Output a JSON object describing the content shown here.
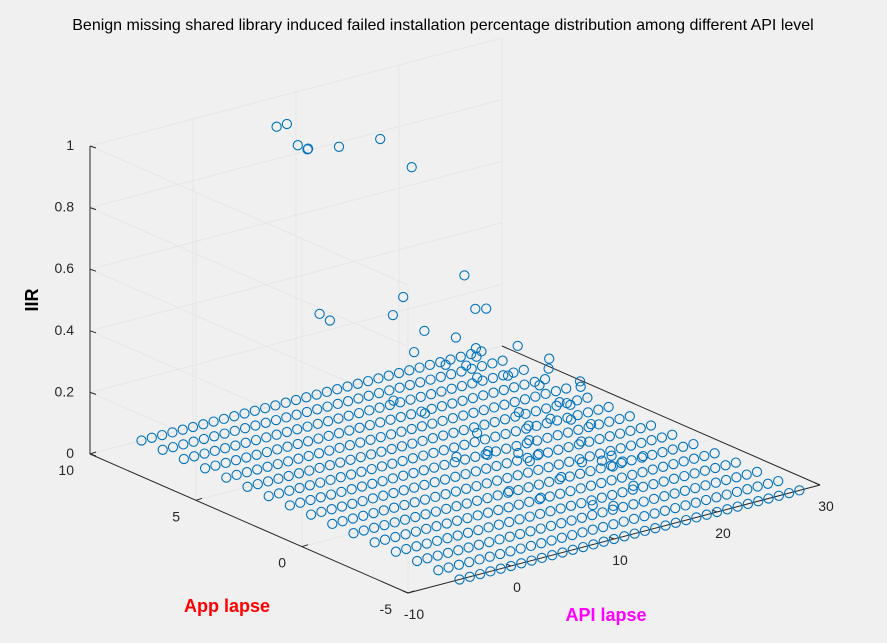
{
  "chart_data": {
    "type": "scatter",
    "title": "Benign missing shared library induced failed installation percentage distribution among different API level",
    "xlabel": "API lapse",
    "ylabel": "App lapse",
    "zlabel": "IIR",
    "xlabel_color": "#ff00ff",
    "ylabel_color": "#ff0000",
    "marker_color": "#0072bd",
    "marker": "open-circle",
    "grid": true,
    "view": "3d",
    "xlim": [
      -10,
      30
    ],
    "ylim": [
      -5,
      10
    ],
    "zlim": [
      0,
      1
    ],
    "xticks": [
      "-10",
      "0",
      "10",
      "20",
      "30"
    ],
    "yticks": [
      "-5",
      "0",
      "5",
      "10"
    ],
    "zticks": [
      "0",
      "0.2",
      "0.4",
      "0.6",
      "0.8",
      "1"
    ],
    "base_grid": {
      "x_min": -5,
      "x_max": 28,
      "x_step": 1,
      "y_min": -5,
      "y_max": 10,
      "y_step": 1,
      "z": 0
    },
    "elevated_points": [
      [
        4,
        8,
        1.0
      ],
      [
        5,
        8,
        1.0
      ],
      [
        4,
        7,
        0.97
      ],
      [
        5,
        7,
        0.95
      ],
      [
        7,
        8,
        0.9
      ],
      [
        8,
        7,
        0.93
      ],
      [
        12,
        7,
        0.92
      ],
      [
        13,
        6,
        0.85
      ],
      [
        6,
        3,
        0.58
      ],
      [
        2,
        5,
        0.5
      ],
      [
        3,
        5,
        0.47
      ],
      [
        5,
        3,
        0.53
      ],
      [
        6,
        2,
        0.5
      ],
      [
        7,
        1,
        0.5
      ],
      [
        12,
        2,
        0.52
      ],
      [
        14,
        4,
        0.55
      ],
      [
        13,
        3,
        0.48
      ],
      [
        5,
        2,
        0.44
      ],
      [
        6,
        1,
        0.42
      ],
      [
        7,
        0,
        0.4
      ],
      [
        9,
        1,
        0.42
      ],
      [
        10,
        0,
        0.38
      ],
      [
        11,
        -1,
        0.37
      ],
      [
        8,
        1,
        0.4
      ],
      [
        11,
        2,
        0.4
      ],
      [
        13,
        1,
        0.42
      ],
      [
        14,
        0,
        0.4
      ],
      [
        15,
        -1,
        0.33
      ],
      [
        17,
        0,
        0.3
      ],
      [
        16,
        1,
        0.32
      ],
      [
        3,
        2,
        0.3
      ],
      [
        4,
        1,
        0.28
      ],
      [
        9,
        -1,
        0.3
      ],
      [
        12,
        -2,
        0.28
      ],
      [
        10,
        -2,
        0.3
      ],
      [
        14,
        -1,
        0.28
      ],
      [
        15,
        0,
        0.25
      ],
      [
        6,
        -1,
        0.2
      ],
      [
        8,
        -2,
        0.18
      ],
      [
        11,
        -3,
        0.18
      ],
      [
        13,
        -2,
        0.2
      ],
      [
        7,
        0,
        0.22
      ],
      [
        10,
        -1,
        0.2
      ],
      [
        12,
        0,
        0.2
      ],
      [
        16,
        -1,
        0.2
      ],
      [
        5,
        0,
        0.16
      ],
      [
        9,
        -3,
        0.15
      ],
      [
        14,
        -3,
        0.14
      ],
      [
        8,
        0,
        0.14
      ],
      [
        11,
        0,
        0.12
      ],
      [
        13,
        0,
        0.1
      ],
      [
        15,
        -2,
        0.12
      ],
      [
        6,
        -2,
        0.1
      ],
      [
        7,
        -3,
        0.1
      ],
      [
        10,
        -4,
        0.08
      ],
      [
        12,
        -4,
        0.06
      ],
      [
        16,
        -3,
        0.06
      ],
      [
        17,
        -2,
        0.1
      ],
      [
        18,
        -1,
        0.08
      ],
      [
        19,
        -2,
        0.1
      ]
    ]
  }
}
